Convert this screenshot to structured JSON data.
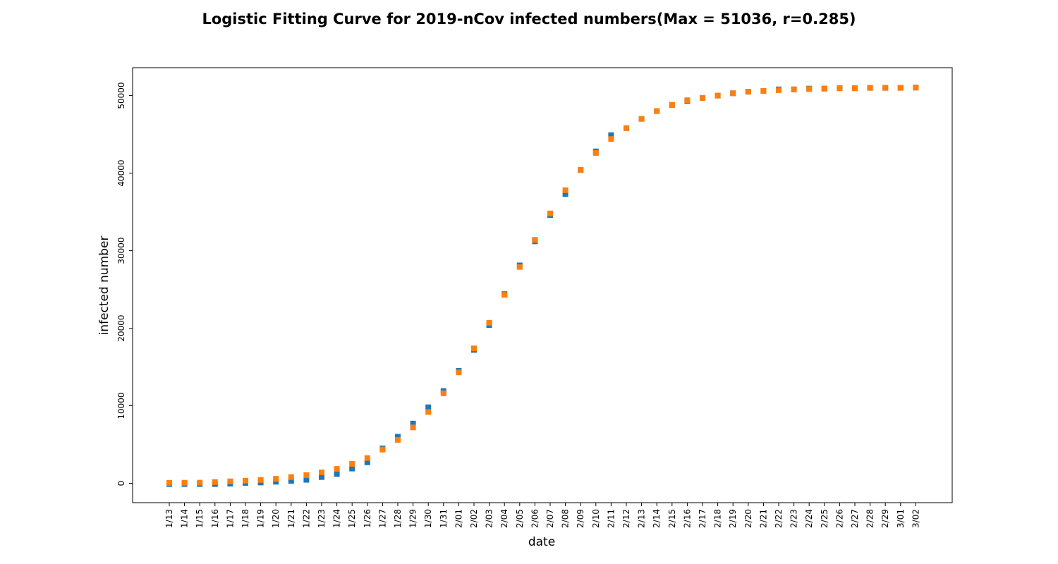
{
  "chart_data": {
    "type": "scatter",
    "title": "Logistic Fitting Curve for 2019-nCov infected numbers(Max = 51036,  r=0.285)",
    "xlabel": "date",
    "ylabel": "infected number",
    "ylim": [
      -2500,
      53600
    ],
    "yticks": [
      0,
      10000,
      20000,
      30000,
      40000,
      50000
    ],
    "grid": false,
    "legend": "none",
    "categories": [
      "1/13",
      "1/14",
      "1/15",
      "1/16",
      "1/17",
      "1/18",
      "1/19",
      "1/20",
      "1/21",
      "1/22",
      "1/23",
      "1/24",
      "1/25",
      "1/26",
      "1/27",
      "1/28",
      "1/29",
      "1/30",
      "1/31",
      "2/01",
      "2/02",
      "2/03",
      "2/04",
      "2/05",
      "2/06",
      "2/07",
      "2/08",
      "2/09",
      "2/10",
      "2/11",
      "2/12",
      "2/13",
      "2/14",
      "2/15",
      "2/16",
      "2/17",
      "2/18",
      "2/19",
      "2/20",
      "2/21",
      "2/22",
      "2/23",
      "2/24",
      "2/25",
      "2/26",
      "2/27",
      "2/28",
      "2/29",
      "3/01",
      "3/02"
    ],
    "series": [
      {
        "color": "#1f77b4",
        "marker": "square",
        "values": [
          -100,
          -100,
          -100,
          -100,
          -50,
          50,
          100,
          200,
          300,
          450,
          800,
          1200,
          1900,
          2700,
          4500,
          6000,
          7700,
          9800,
          11900,
          14500,
          17200,
          20400,
          24400,
          28100,
          31200,
          34600,
          37300,
          40400,
          42800,
          44900,
          45800,
          47000,
          48000,
          48800,
          49300,
          49700,
          50000,
          50300,
          50500,
          50600,
          50800,
          50800,
          50900,
          50900,
          50950,
          50950,
          51000,
          51000,
          51000,
          51036
        ]
      },
      {
        "color": "#ff7f0e",
        "marker": "square",
        "values": [
          60,
          70,
          80,
          160,
          250,
          330,
          430,
          580,
          800,
          1050,
          1400,
          1850,
          2500,
          3250,
          4350,
          5600,
          7200,
          9200,
          11600,
          14300,
          17400,
          20700,
          24300,
          27900,
          31400,
          34800,
          37800,
          40400,
          42600,
          44400,
          45800,
          47000,
          48000,
          48800,
          49400,
          49700,
          50000,
          50300,
          50500,
          50600,
          50700,
          50800,
          50850,
          50900,
          50950,
          50950,
          51000,
          51000,
          51000,
          51036
        ]
      }
    ]
  }
}
